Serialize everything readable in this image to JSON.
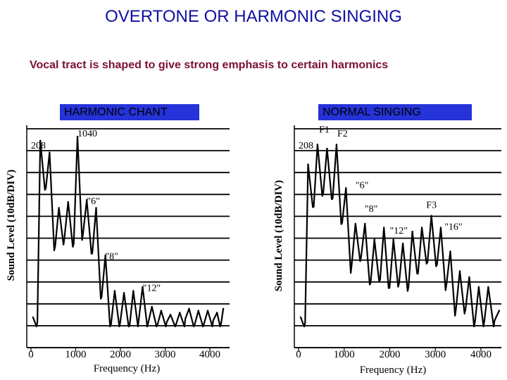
{
  "title": "OVERTONE OR HARMONIC SINGING",
  "subtitle": "Vocal tract is shaped to give strong emphasis to certain harmonics",
  "chart_data": [
    {
      "type": "line",
      "panel_label": "HARMONIC CHANT",
      "xlabel": "Frequency (Hz)",
      "ylabel": "Sound Level (10dB/DIV)",
      "xlim": [
        0,
        4400
      ],
      "x_ticks": [
        "0",
        "1000",
        "2000",
        "3000",
        "4000"
      ],
      "x_tick_values": [
        0,
        1000,
        2000,
        3000,
        4000
      ],
      "y_divisions": 10,
      "grid": true,
      "annotations": [
        {
          "text": "208",
          "x": 0,
          "y": 0.1
        },
        {
          "text": "1040",
          "x": 1040,
          "y": 0.04
        },
        {
          "text": "\"6\"",
          "x": 1250,
          "y": 0.38
        },
        {
          "text": "\"8\"",
          "x": 1660,
          "y": 0.66
        },
        {
          "text": "\"12\"",
          "x": 2500,
          "y": 0.82
        }
      ],
      "peaks": [
        {
          "x": 208,
          "y": 0.06
        },
        {
          "x": 416,
          "y": 0.12
        },
        {
          "x": 624,
          "y": 0.4
        },
        {
          "x": 832,
          "y": 0.37
        },
        {
          "x": 1040,
          "y": 0.04
        },
        {
          "x": 1248,
          "y": 0.36
        },
        {
          "x": 1456,
          "y": 0.4
        },
        {
          "x": 1664,
          "y": 0.64
        },
        {
          "x": 1872,
          "y": 0.82
        },
        {
          "x": 2080,
          "y": 0.83
        },
        {
          "x": 2288,
          "y": 0.82
        },
        {
          "x": 2496,
          "y": 0.8
        },
        {
          "x": 2704,
          "y": 0.9
        },
        {
          "x": 2912,
          "y": 0.92
        },
        {
          "x": 3120,
          "y": 0.94
        },
        {
          "x": 3328,
          "y": 0.93
        },
        {
          "x": 3536,
          "y": 0.91
        },
        {
          "x": 3744,
          "y": 0.92
        },
        {
          "x": 3952,
          "y": 0.92
        },
        {
          "x": 4160,
          "y": 0.93
        },
        {
          "x": 4300,
          "y": 0.91
        }
      ]
    },
    {
      "type": "line",
      "panel_label": "NORMAL SINGING",
      "xlabel": "Frequency (Hz)",
      "ylabel": "Sound Level (10dB/DIV)",
      "xlim": [
        0,
        4400
      ],
      "x_ticks": [
        "0",
        "1000",
        "2000",
        "3000",
        "4000"
      ],
      "x_tick_values": [
        0,
        1000,
        2000,
        3000,
        4000
      ],
      "y_divisions": 10,
      "grid": true,
      "annotations": [
        {
          "text": "208",
          "x": 0,
          "y": 0.1
        },
        {
          "text": "F1",
          "x": 450,
          "y": 0.02
        },
        {
          "text": "F2",
          "x": 850,
          "y": 0.04
        },
        {
          "text": "\"6\"",
          "x": 1250,
          "y": 0.3
        },
        {
          "text": "\"8\"",
          "x": 1450,
          "y": 0.42
        },
        {
          "text": "F3",
          "x": 2800,
          "y": 0.4
        },
        {
          "text": "\"12\"",
          "x": 2000,
          "y": 0.53
        },
        {
          "text": "\"16\"",
          "x": 3200,
          "y": 0.51
        }
      ],
      "peaks": [
        {
          "x": 208,
          "y": 0.18
        },
        {
          "x": 416,
          "y": 0.08
        },
        {
          "x": 624,
          "y": 0.1
        },
        {
          "x": 832,
          "y": 0.08
        },
        {
          "x": 1040,
          "y": 0.3
        },
        {
          "x": 1248,
          "y": 0.48
        },
        {
          "x": 1456,
          "y": 0.48
        },
        {
          "x": 1664,
          "y": 0.56
        },
        {
          "x": 1872,
          "y": 0.5
        },
        {
          "x": 2080,
          "y": 0.56
        },
        {
          "x": 2288,
          "y": 0.58
        },
        {
          "x": 2496,
          "y": 0.52
        },
        {
          "x": 2704,
          "y": 0.5
        },
        {
          "x": 2912,
          "y": 0.44
        },
        {
          "x": 3120,
          "y": 0.5
        },
        {
          "x": 3328,
          "y": 0.62
        },
        {
          "x": 3536,
          "y": 0.72
        },
        {
          "x": 3744,
          "y": 0.75
        },
        {
          "x": 3952,
          "y": 0.8
        },
        {
          "x": 4160,
          "y": 0.8
        },
        {
          "x": 4400,
          "y": 0.92
        }
      ]
    }
  ]
}
